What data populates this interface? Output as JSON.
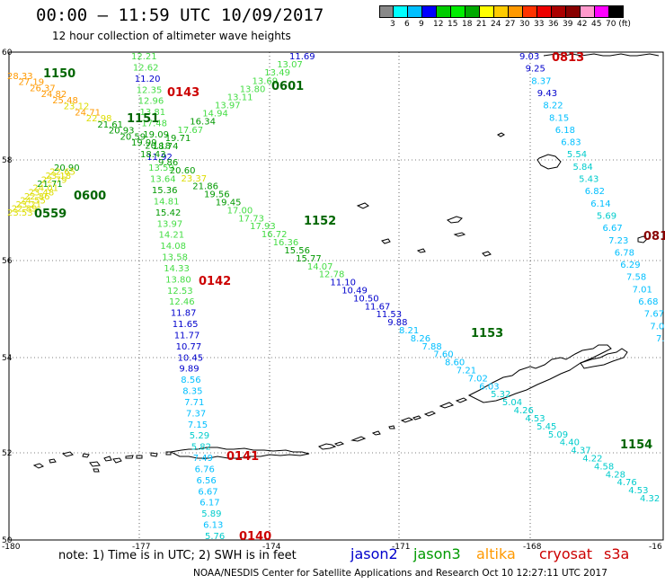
{
  "header": {
    "title": "00:00 – 11:59 UTC 10/09/2017",
    "subtitle": "12 hour collection of altimeter wave heights"
  },
  "scale": {
    "colors": [
      "#888888",
      "#00ffff",
      "#00bfff",
      "#0000ff",
      "#00cc00",
      "#00ee00",
      "#00aa00",
      "#ffff00",
      "#ffcc00",
      "#ff9900",
      "#ff3300",
      "#ee0000",
      "#aa0000",
      "#880000",
      "#ff99cc",
      "#ff00ff",
      "#000000"
    ],
    "labels": [
      "3",
      "6",
      "9",
      "12",
      "15",
      "18",
      "21",
      "24",
      "27",
      "30",
      "33",
      "36",
      "39",
      "42",
      "45",
      "70 (ft)"
    ]
  },
  "axes": {
    "lat_labels": [
      "60",
      "58",
      "56",
      "54",
      "52",
      "50"
    ],
    "lon_labels": [
      "-180",
      "-177",
      "-174",
      "-171",
      "-168",
      "-16"
    ]
  },
  "colors": {
    "jason2": "#0000cc",
    "jason3": "#009900",
    "altika": "#ff9900",
    "cryosat": "#cc0000",
    "s3a": "#cc0000",
    "time_green": "#006600",
    "time_red": "#cc0000"
  },
  "time_labels": [
    {
      "text": "1150",
      "color": "#006600"
    },
    {
      "text": "0143",
      "color": "#cc0000"
    },
    {
      "text": "0601",
      "color": "#006600"
    },
    {
      "text": "1151",
      "color": "#006600"
    },
    {
      "text": "0600",
      "color": "#006600"
    },
    {
      "text": "0559",
      "color": "#006600"
    },
    {
      "text": "1152",
      "color": "#006600"
    },
    {
      "text": "0142",
      "color": "#cc0000"
    },
    {
      "text": "1153",
      "color": "#006600"
    },
    {
      "text": "0141",
      "color": "#cc0000"
    },
    {
      "text": "0140",
      "color": "#cc0000"
    },
    {
      "text": "1154",
      "color": "#006600"
    },
    {
      "text": "0813",
      "color": "#cc0000"
    },
    {
      "text": "081",
      "color": "#880000"
    }
  ],
  "tracks": {
    "track_174_lon": [
      {
        "v": "12.21",
        "c": "#44dd44"
      },
      {
        "v": "12.62",
        "c": "#44dd44"
      },
      {
        "v": "11.20",
        "c": "#0000cc"
      },
      {
        "v": "12.35",
        "c": "#44dd44"
      },
      {
        "v": "12.96",
        "c": "#44dd44"
      },
      {
        "v": "13.81",
        "c": "#44dd44"
      },
      {
        "v": "17.48",
        "c": "#44dd44"
      },
      {
        "v": "19.09",
        "c": "#009900"
      },
      {
        "v": "20.18",
        "c": "#009900"
      },
      {
        "v": "11.92",
        "c": "#0000cc"
      },
      {
        "v": "13.59",
        "c": "#44dd44"
      },
      {
        "v": "13.64",
        "c": "#44dd44"
      },
      {
        "v": "15.36",
        "c": "#009900"
      },
      {
        "v": "14.81",
        "c": "#44dd44"
      },
      {
        "v": "15.42",
        "c": "#009900"
      },
      {
        "v": "13.97",
        "c": "#44dd44"
      },
      {
        "v": "14.21",
        "c": "#44dd44"
      },
      {
        "v": "14.08",
        "c": "#44dd44"
      },
      {
        "v": "13.58",
        "c": "#44dd44"
      },
      {
        "v": "14.33",
        "c": "#44dd44"
      },
      {
        "v": "13.80",
        "c": "#44dd44"
      },
      {
        "v": "12.53",
        "c": "#44dd44"
      },
      {
        "v": "12.46",
        "c": "#44dd44"
      },
      {
        "v": "11.87",
        "c": "#0000cc"
      },
      {
        "v": "11.65",
        "c": "#0000cc"
      },
      {
        "v": "11.77",
        "c": "#0000cc"
      },
      {
        "v": "10.77",
        "c": "#0000cc"
      },
      {
        "v": "10.45",
        "c": "#0000cc"
      },
      {
        "v": "9.89",
        "c": "#0000cc"
      },
      {
        "v": "8.56",
        "c": "#00bfff"
      },
      {
        "v": "8.35",
        "c": "#00bfff"
      },
      {
        "v": "7.71",
        "c": "#00bfff"
      },
      {
        "v": "7.37",
        "c": "#00bfff"
      },
      {
        "v": "7.15",
        "c": "#00bfff"
      },
      {
        "v": "5.29",
        "c": "#00cccc"
      },
      {
        "v": "5.82",
        "c": "#00cccc"
      },
      {
        "v": "7.49",
        "c": "#00bfff"
      },
      {
        "v": "6.76",
        "c": "#00bfff"
      },
      {
        "v": "6.56",
        "c": "#00bfff"
      },
      {
        "v": "6.67",
        "c": "#00bfff"
      },
      {
        "v": "6.17",
        "c": "#00bfff"
      },
      {
        "v": "5.89",
        "c": "#00cccc"
      },
      {
        "v": "6.13",
        "c": "#00bfff"
      },
      {
        "v": "5.76",
        "c": "#00cccc"
      }
    ],
    "track_diag_long": [
      {
        "v": "9.86",
        "c": "#009900"
      },
      {
        "v": "20.60",
        "c": "#009900"
      },
      {
        "v": "23.37",
        "c": "#dddd00"
      },
      {
        "v": "21.86",
        "c": "#009900"
      },
      {
        "v": "19.56",
        "c": "#009900"
      },
      {
        "v": "19.45",
        "c": "#009900"
      },
      {
        "v": "17.00",
        "c": "#44dd44"
      },
      {
        "v": "17.73",
        "c": "#44dd44"
      },
      {
        "v": "17.93",
        "c": "#44dd44"
      },
      {
        "v": "16.72",
        "c": "#44dd44"
      },
      {
        "v": "16.36",
        "c": "#44dd44"
      },
      {
        "v": "15.56",
        "c": "#009900"
      },
      {
        "v": "15.77",
        "c": "#009900"
      },
      {
        "v": "14.07",
        "c": "#44dd44"
      },
      {
        "v": "12.78",
        "c": "#44dd44"
      },
      {
        "v": "11.10",
        "c": "#0000cc"
      },
      {
        "v": "10.49",
        "c": "#0000cc"
      },
      {
        "v": "10.50",
        "c": "#0000cc"
      },
      {
        "v": "11.67",
        "c": "#0000cc"
      },
      {
        "v": "11.53",
        "c": "#0000cc"
      },
      {
        "v": "9.88",
        "c": "#0000cc"
      },
      {
        "v": "8.21",
        "c": "#00bfff"
      },
      {
        "v": "8.26",
        "c": "#00bfff"
      },
      {
        "v": "7.88",
        "c": "#00bfff"
      },
      {
        "v": "7.60",
        "c": "#00bfff"
      },
      {
        "v": "8.60",
        "c": "#00bfff"
      },
      {
        "v": "7.21",
        "c": "#00bfff"
      },
      {
        "v": "7.02",
        "c": "#00bfff"
      },
      {
        "v": "6.03",
        "c": "#00bfff"
      },
      {
        "v": "5.32",
        "c": "#00cccc"
      },
      {
        "v": "5.04",
        "c": "#00cccc"
      },
      {
        "v": "4.26",
        "c": "#00cccc"
      },
      {
        "v": "4.53",
        "c": "#00cccc"
      },
      {
        "v": "5.45",
        "c": "#00cccc"
      },
      {
        "v": "5.09",
        "c": "#00cccc"
      },
      {
        "v": "4.40",
        "c": "#00cccc"
      },
      {
        "v": "4.37",
        "c": "#00cccc"
      },
      {
        "v": "4.22",
        "c": "#00cccc"
      },
      {
        "v": "4.58",
        "c": "#00cccc"
      },
      {
        "v": "4.28",
        "c": "#00cccc"
      },
      {
        "v": "4.76",
        "c": "#00cccc"
      },
      {
        "v": "4.53",
        "c": "#00cccc"
      },
      {
        "v": "4.32",
        "c": "#00cccc"
      }
    ],
    "track_ne_up": [
      {
        "v": "11.69",
        "c": "#0000cc"
      },
      {
        "v": "13.07",
        "c": "#44dd44"
      },
      {
        "v": "13.49",
        "c": "#44dd44"
      },
      {
        "v": "13.69",
        "c": "#44dd44"
      },
      {
        "v": "13.80",
        "c": "#44dd44"
      },
      {
        "v": "13.11",
        "c": "#44dd44"
      },
      {
        "v": "13.97",
        "c": "#44dd44"
      },
      {
        "v": "14.94",
        "c": "#44dd44"
      },
      {
        "v": "16.34",
        "c": "#009900"
      },
      {
        "v": "17.67",
        "c": "#44dd44"
      },
      {
        "v": "19.71",
        "c": "#009900"
      },
      {
        "v": "18.74",
        "c": "#009900"
      },
      {
        "v": "18.43",
        "c": "#009900"
      }
    ],
    "track_nw": [
      {
        "v": "28.33",
        "c": "#ff9900"
      },
      {
        "v": "27.19",
        "c": "#ff9900"
      },
      {
        "v": "26.37",
        "c": "#ff9900"
      },
      {
        "v": "24.82",
        "c": "#ff9900"
      },
      {
        "v": "25.48",
        "c": "#ff9900"
      },
      {
        "v": "23.12",
        "c": "#dddd00"
      },
      {
        "v": "24.71",
        "c": "#ff9900"
      },
      {
        "v": "22.98",
        "c": "#dddd00"
      },
      {
        "v": "21.61",
        "c": "#009900"
      },
      {
        "v": "20.93",
        "c": "#009900"
      },
      {
        "v": "20.59",
        "c": "#009900"
      },
      {
        "v": "19.99",
        "c": "#009900"
      }
    ],
    "track_sw": [
      {
        "v": "20.90",
        "c": "#009900"
      },
      {
        "v": "22.65",
        "c": "#dddd00"
      },
      {
        "v": "23.18",
        "c": "#dddd00"
      },
      {
        "v": "22.79",
        "c": "#dddd00"
      },
      {
        "v": "21.71",
        "c": "#009900"
      },
      {
        "v": "24.01",
        "c": "#dddd00"
      },
      {
        "v": "23.48",
        "c": "#dddd00"
      },
      {
        "v": "22.86",
        "c": "#dddd00"
      },
      {
        "v": "24.55",
        "c": "#dddd00"
      },
      {
        "v": "23.21",
        "c": "#dddd00"
      },
      {
        "v": "22.89",
        "c": "#dddd00"
      },
      {
        "v": "23.53",
        "c": "#dddd00"
      }
    ],
    "track_east": [
      {
        "v": "9.03",
        "c": "#0000cc"
      },
      {
        "v": "9.25",
        "c": "#0000cc"
      },
      {
        "v": "8.37",
        "c": "#00bfff"
      },
      {
        "v": "9.43",
        "c": "#0000cc"
      },
      {
        "v": "8.22",
        "c": "#00bfff"
      },
      {
        "v": "8.15",
        "c": "#00bfff"
      },
      {
        "v": "6.18",
        "c": "#00bfff"
      },
      {
        "v": "6.83",
        "c": "#00bfff"
      },
      {
        "v": "5.54",
        "c": "#00cccc"
      },
      {
        "v": "5.84",
        "c": "#00cccc"
      },
      {
        "v": "5.43",
        "c": "#00cccc"
      },
      {
        "v": "6.82",
        "c": "#00bfff"
      },
      {
        "v": "6.14",
        "c": "#00bfff"
      },
      {
        "v": "5.69",
        "c": "#00cccc"
      },
      {
        "v": "6.67",
        "c": "#00bfff"
      },
      {
        "v": "7.23",
        "c": "#00bfff"
      },
      {
        "v": "6.78",
        "c": "#00bfff"
      },
      {
        "v": "6.29",
        "c": "#00bfff"
      },
      {
        "v": "7.58",
        "c": "#00bfff"
      },
      {
        "v": "7.01",
        "c": "#00bfff"
      },
      {
        "v": "6.68",
        "c": "#00bfff"
      },
      {
        "v": "7.67",
        "c": "#00bfff"
      },
      {
        "v": "7.0",
        "c": "#00bfff"
      },
      {
        "v": "7.",
        "c": "#00bfff"
      }
    ]
  },
  "footer": {
    "note": "note:  1) Time is in UTC;  2) SWH is in feet",
    "credit": "NOAA/NESDIS Center for Satellite Applications and Research    Oct 10 12:27:11 UTC 2017",
    "satellites": [
      {
        "name": "jason2",
        "color": "#0000cc"
      },
      {
        "name": "jason3",
        "color": "#009900"
      },
      {
        "name": "altika",
        "color": "#ff9900"
      },
      {
        "name": "cryosat",
        "color": "#cc0000"
      },
      {
        "name": "s3a",
        "color": "#cc0000"
      }
    ]
  }
}
